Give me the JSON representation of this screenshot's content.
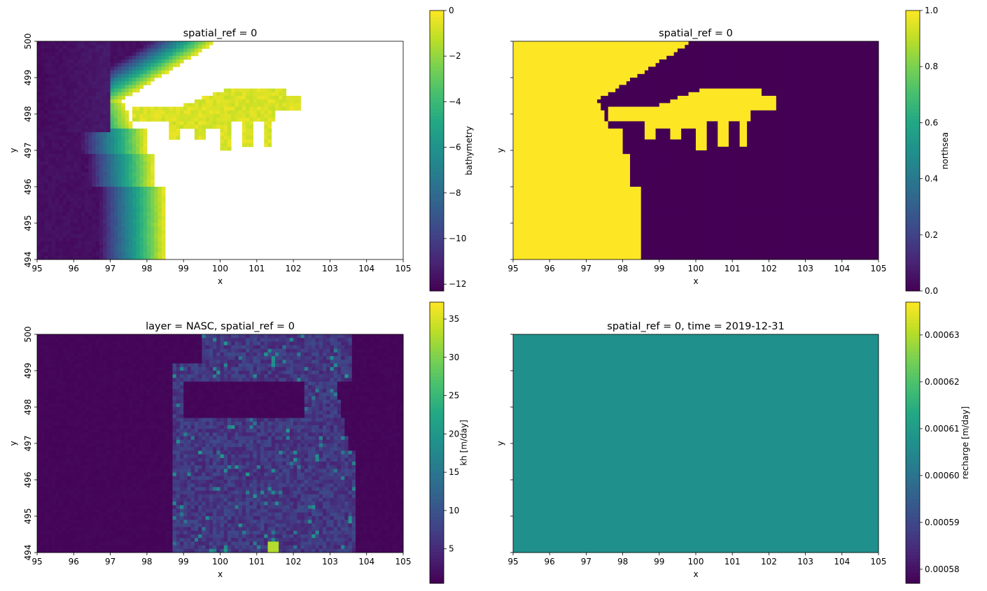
{
  "chart_data": [
    {
      "type": "heatmap",
      "title": "spatial_ref = 0",
      "xlabel": "x",
      "ylabel": "y",
      "xlim": [
        95,
        105
      ],
      "ylim": [
        494,
        500
      ],
      "xticks": [
        "95",
        "96",
        "97",
        "98",
        "99",
        "100",
        "101",
        "102",
        "103",
        "104",
        "105"
      ],
      "yticks": [
        "494",
        "495",
        "496",
        "497",
        "498",
        "499",
        "500"
      ],
      "show_yticklabels": true,
      "colormap": "viridis",
      "colorbar": {
        "label": "bathymetry",
        "min": -12.3,
        "max": 0,
        "ticks": [
          "0",
          "−2",
          "−4",
          "−6",
          "−8",
          "−10",
          "−12"
        ],
        "tick_values": [
          0,
          -2,
          -4,
          -6,
          -8,
          -10,
          -12
        ]
      },
      "field": "bathymetry"
    },
    {
      "type": "heatmap",
      "title": "spatial_ref = 0",
      "xlabel": "x",
      "ylabel": "y",
      "xlim": [
        95,
        105
      ],
      "ylim": [
        494,
        500
      ],
      "xticks": [
        "95",
        "96",
        "97",
        "98",
        "99",
        "100",
        "101",
        "102",
        "103",
        "104",
        "105"
      ],
      "yticks": [
        "494",
        "495",
        "496",
        "497",
        "498",
        "499",
        "500"
      ],
      "show_yticklabels": false,
      "colormap": "viridis",
      "colorbar": {
        "label": "northsea",
        "min": 0,
        "max": 1,
        "ticks": [
          "0.0",
          "0.2",
          "0.4",
          "0.6",
          "0.8",
          "1.0"
        ],
        "tick_values": [
          0,
          0.2,
          0.4,
          0.6,
          0.8,
          1.0
        ]
      },
      "field": "northsea"
    },
    {
      "type": "heatmap",
      "title": "layer = NASC, spatial_ref = 0",
      "xlabel": "x",
      "ylabel": "y",
      "xlim": [
        95,
        105
      ],
      "ylim": [
        494,
        500
      ],
      "xticks": [
        "95",
        "96",
        "97",
        "98",
        "99",
        "100",
        "101",
        "102",
        "103",
        "104",
        "105"
      ],
      "yticks": [
        "494",
        "495",
        "496",
        "497",
        "498",
        "499",
        "500"
      ],
      "show_yticklabels": true,
      "colormap": "viridis",
      "colorbar": {
        "label": "kh [m/day]",
        "min": 0.5,
        "max": 37.2,
        "ticks": [
          "5",
          "10",
          "15",
          "20",
          "25",
          "30",
          "35"
        ],
        "tick_values": [
          5,
          10,
          15,
          20,
          25,
          30,
          35
        ]
      },
      "field": "kh"
    },
    {
      "type": "heatmap",
      "title": "spatial_ref = 0, time = 2019-12-31",
      "xlabel": "x",
      "ylabel": "y",
      "xlim": [
        95,
        105
      ],
      "ylim": [
        494,
        500
      ],
      "xticks": [
        "95",
        "96",
        "97",
        "98",
        "99",
        "100",
        "101",
        "102",
        "103",
        "104",
        "105"
      ],
      "yticks": [
        "494",
        "495",
        "496",
        "497",
        "498",
        "499",
        "500"
      ],
      "show_yticklabels": false,
      "colormap": "viridis",
      "colorbar": {
        "label": "recharge [m/day]",
        "min": 0.000577,
        "max": 0.000637,
        "ticks": [
          "0.00058",
          "0.00059",
          "0.00060",
          "0.00061",
          "0.00062",
          "0.00063"
        ],
        "tick_values": [
          0.00058,
          0.00059,
          0.0006,
          0.00061,
          0.00062,
          0.00063
        ]
      },
      "field": "constant",
      "value": 0.000607
    }
  ]
}
